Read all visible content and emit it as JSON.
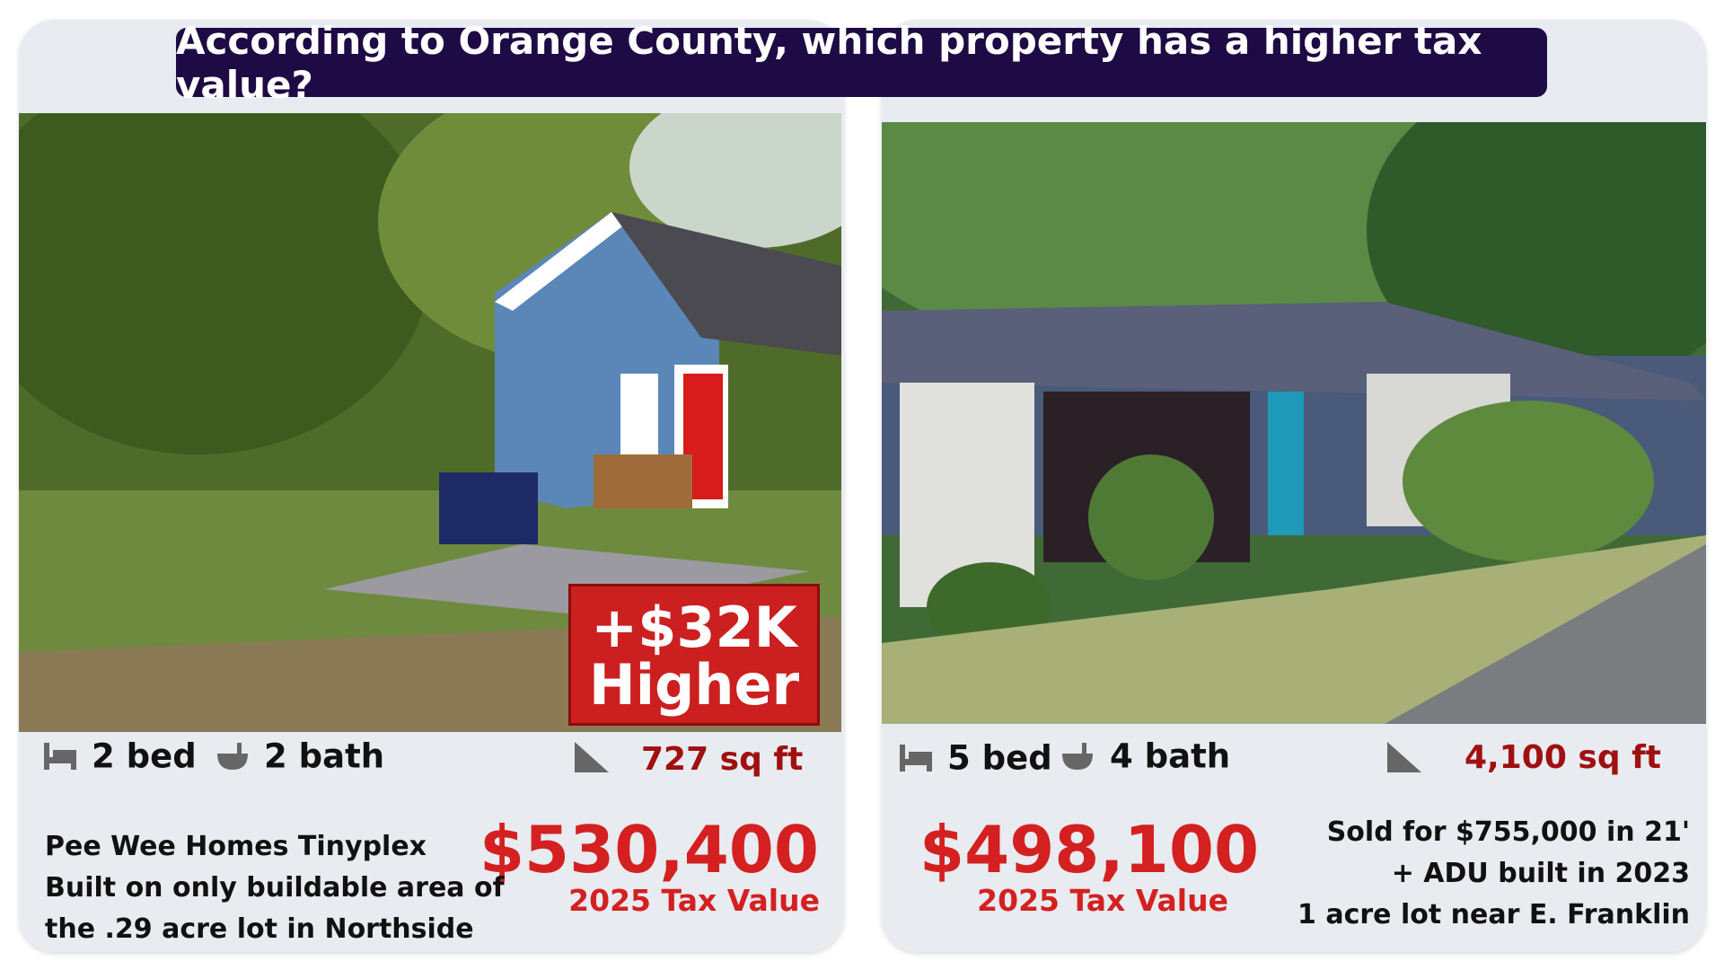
{
  "title": "According to Orange County, which property has a higher tax value?",
  "cards": [
    {
      "beds": "2 bed",
      "baths": "2 bath",
      "area": "727 sq ft",
      "badge": [
        "+$32K",
        "Higher"
      ],
      "price": "$530,400",
      "price_label": "2025 Tax Value",
      "notes": [
        "Pee Wee Homes Tinyplex",
        "Built on only buildable area of",
        "the .29 acre lot in Northside"
      ]
    },
    {
      "beds": "5 bed",
      "baths": "4 bath",
      "area": "4,100 sq ft",
      "price": "$498,100",
      "price_label": "2025 Tax Value",
      "notes": [
        "Sold for $755,000 in 21'",
        "+ ADU built in 2023",
        "1 acre lot near E. Franklin"
      ]
    }
  ]
}
